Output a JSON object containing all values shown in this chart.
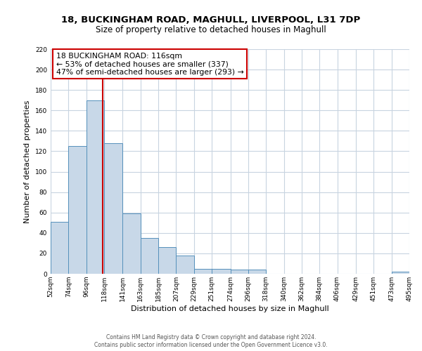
{
  "title_line1": "18, BUCKINGHAM ROAD, MAGHULL, LIVERPOOL, L31 7DP",
  "title_line2": "Size of property relative to detached houses in Maghull",
  "xlabel": "Distribution of detached houses by size in Maghull",
  "ylabel": "Number of detached properties",
  "footnote_line1": "Contains HM Land Registry data © Crown copyright and database right 2024.",
  "footnote_line2": "Contains public sector information licensed under the Open Government Licence v3.0.",
  "bin_edges": [
    52,
    74,
    96,
    118,
    141,
    163,
    185,
    207,
    229,
    251,
    274,
    296,
    318,
    340,
    362,
    384,
    406,
    429,
    451,
    473,
    495
  ],
  "bar_heights": [
    51,
    125,
    170,
    128,
    59,
    35,
    26,
    18,
    5,
    5,
    4,
    4,
    0,
    0,
    0,
    0,
    0,
    0,
    0,
    2
  ],
  "bar_color": "#c8d8e8",
  "bar_edge_color": "#5590bb",
  "property_size": 116,
  "vline_color": "#cc0000",
  "annotation_title": "18 BUCKINGHAM ROAD: 116sqm",
  "annotation_line2": "← 53% of detached houses are smaller (337)",
  "annotation_line3": "47% of semi-detached houses are larger (293) →",
  "annotation_box_color": "#cc0000",
  "ylim": [
    0,
    220
  ],
  "ytick_max": 220,
  "ytick_step": 20,
  "tick_labels": [
    "52sqm",
    "74sqm",
    "96sqm",
    "118sqm",
    "141sqm",
    "163sqm",
    "185sqm",
    "207sqm",
    "229sqm",
    "251sqm",
    "274sqm",
    "296sqm",
    "318sqm",
    "340sqm",
    "362sqm",
    "384sqm",
    "406sqm",
    "429sqm",
    "451sqm",
    "473sqm",
    "495sqm"
  ],
  "background_color": "#ffffff",
  "grid_color": "#c8d4e0",
  "title1_fontsize": 9.5,
  "title2_fontsize": 8.5,
  "axis_label_fontsize": 8,
  "tick_fontsize": 6.5,
  "annot_fontsize": 7.8,
  "footnote_fontsize": 5.5
}
